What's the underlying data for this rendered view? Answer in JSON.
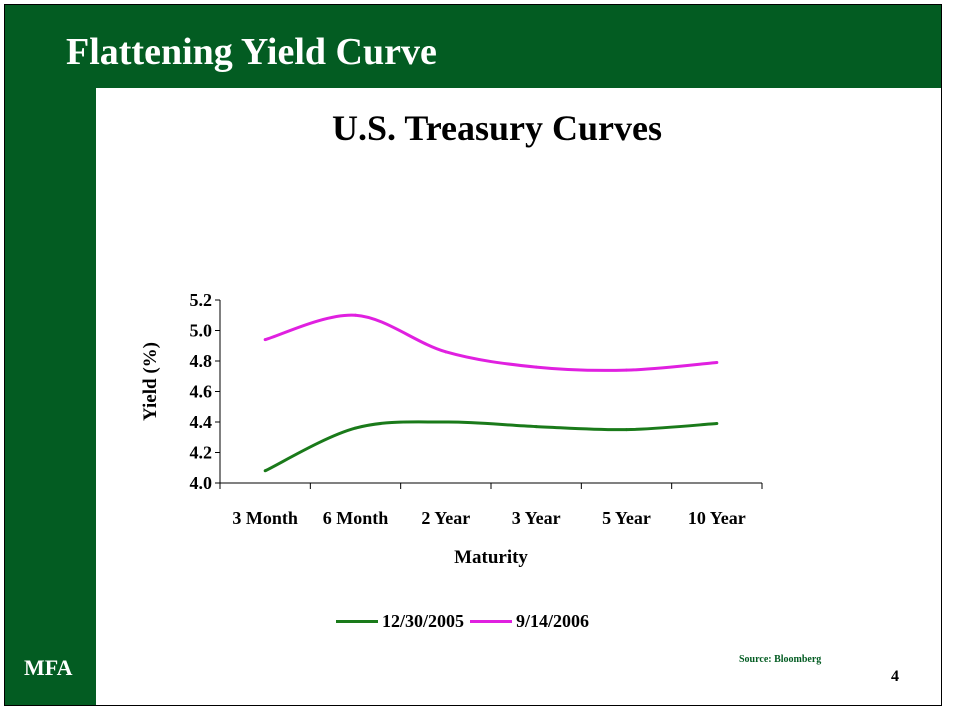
{
  "slide": {
    "title": "Flattening Yield Curve",
    "brand": "MFA",
    "source": "Source: Bloomberg",
    "page_number": "4",
    "brand_color": "#035c22"
  },
  "chart_data": {
    "type": "line",
    "title": "U.S. Treasury Curves",
    "xlabel": "Maturity",
    "ylabel": "Yield (%)",
    "categories": [
      "3 Month",
      "6 Month",
      "2 Year",
      "3 Year",
      "5 Year",
      "10 Year"
    ],
    "ylim": [
      4.0,
      5.2
    ],
    "yticks": [
      "4.0",
      "4.2",
      "4.4",
      "4.6",
      "4.8",
      "5.0",
      "5.2"
    ],
    "grid": false,
    "legend_position": "bottom",
    "series": [
      {
        "name": "12/30/2005",
        "color": "#1a7a1a",
        "values": [
          4.08,
          4.36,
          4.4,
          4.37,
          4.35,
          4.39
        ]
      },
      {
        "name": "9/14/2006",
        "color": "#e020e0",
        "values": [
          4.94,
          5.1,
          4.86,
          4.76,
          4.74,
          4.79
        ]
      }
    ]
  }
}
